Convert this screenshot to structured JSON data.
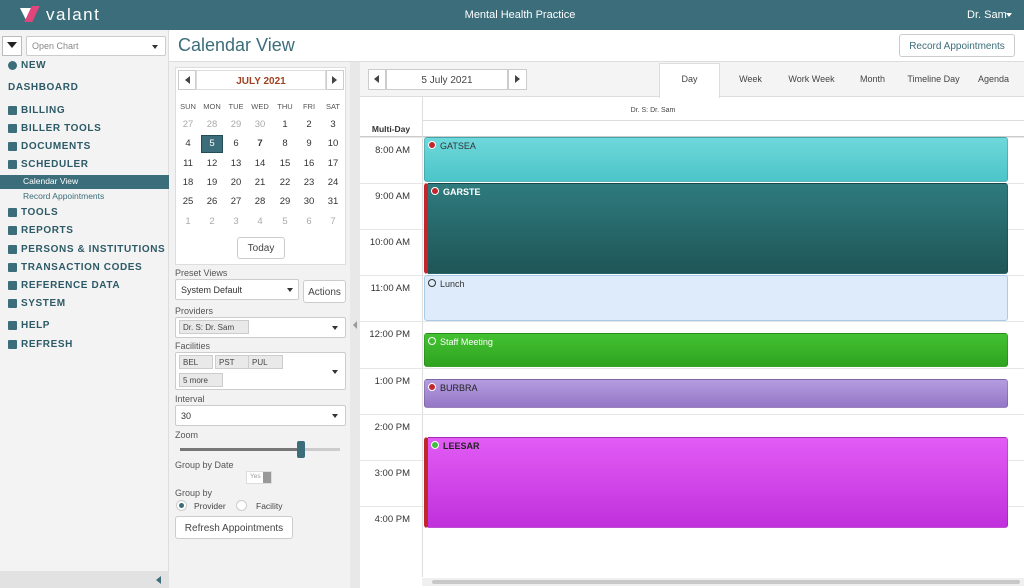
{
  "header": {
    "logo": "valant",
    "title": "Mental Health Practice",
    "user": "Dr. Sam"
  },
  "sidebar": {
    "search_placeholder": "Open Chart",
    "items": [
      "NEW",
      "DASHBOARD",
      "BILLING",
      "BILLER TOOLS",
      "DOCUMENTS",
      "SCHEDULER",
      "Calendar View",
      "Record Appointments",
      "TOOLS",
      "REPORTS",
      "PERSONS & INSTITUTIONS",
      "TRANSACTION CODES",
      "REFERENCE DATA",
      "SYSTEM",
      "HELP",
      "REFRESH"
    ]
  },
  "page": {
    "title": "Calendar View",
    "action_button": "Record Appointments"
  },
  "mini_calendar": {
    "month": "JULY 2021",
    "weekdays": [
      "SUN",
      "MON",
      "TUE",
      "WED",
      "THU",
      "FRI",
      "SAT"
    ],
    "weeks": [
      [
        27,
        28,
        29,
        30,
        1,
        2,
        3
      ],
      [
        4,
        5,
        6,
        7,
        8,
        9,
        10
      ],
      [
        11,
        12,
        13,
        14,
        15,
        16,
        17
      ],
      [
        18,
        19,
        20,
        21,
        22,
        23,
        24
      ],
      [
        25,
        26,
        27,
        28,
        29,
        30,
        31
      ],
      [
        1,
        2,
        3,
        4,
        5,
        6,
        7
      ]
    ],
    "today_button": "Today"
  },
  "filters": {
    "preset_views_label": "Preset Views",
    "preset_view": "System Default",
    "actions_button": "Actions",
    "providers_label": "Providers",
    "providers": [
      "Dr. S: Dr. Sam"
    ],
    "facilities_label": "Facilities",
    "facilities": [
      "BEL",
      "PST",
      "PUL",
      "5 more"
    ],
    "interval_label": "Interval",
    "interval": "30",
    "zoom_label": "Zoom",
    "group_by_date_label": "Group by Date",
    "group_by_date_toggle": "Yes",
    "group_by_label": "Group by",
    "group_by_options": [
      "Provider",
      "Facility"
    ],
    "refresh_button": "Refresh Appointments"
  },
  "scheduler": {
    "date": "5 July 2021",
    "views": [
      "Day",
      "Week",
      "Work Week",
      "Month",
      "Timeline Day",
      "Agenda"
    ],
    "resource": "Dr. S: Dr. Sam",
    "multi_day_label": "Multi-Day",
    "times": [
      "8:00 AM",
      "9:00 AM",
      "10:00 AM",
      "11:00 AM",
      "12:00 PM",
      "1:00 PM",
      "2:00 PM",
      "3:00 PM",
      "4:00 PM"
    ],
    "events": [
      "GATSEA",
      "GARSTE",
      "Lunch",
      "Staff Meeting",
      "BURBRA",
      "LEESAR"
    ]
  }
}
